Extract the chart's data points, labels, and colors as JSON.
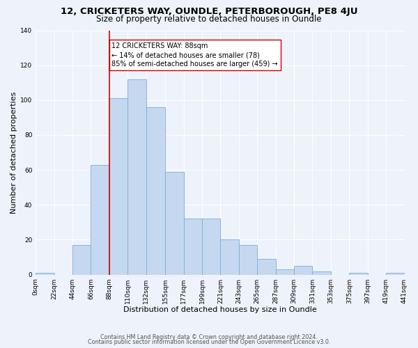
{
  "title": "12, CRICKETERS WAY, OUNDLE, PETERBOROUGH, PE8 4JU",
  "subtitle": "Size of property relative to detached houses in Oundle",
  "xlabel": "Distribution of detached houses by size in Oundle",
  "ylabel": "Number of detached properties",
  "bar_edges": [
    0,
    22,
    44,
    66,
    88,
    110,
    132,
    155,
    177,
    199,
    221,
    243,
    265,
    287,
    309,
    331,
    353,
    375,
    397,
    419,
    441
  ],
  "bar_heights": [
    1,
    0,
    17,
    63,
    101,
    112,
    96,
    59,
    32,
    32,
    20,
    17,
    9,
    3,
    5,
    2,
    0,
    1,
    0,
    1
  ],
  "bar_color": "#c5d8f0",
  "bar_edgecolor": "#7aafd4",
  "vline_x": 88,
  "vline_color": "#cc0000",
  "annotation_text": "12 CRICKETERS WAY: 88sqm\n← 14% of detached houses are smaller (78)\n85% of semi-detached houses are larger (459) →",
  "annotation_box_edgecolor": "#cc0000",
  "annotation_box_facecolor": "#ffffff",
  "ylim": [
    0,
    140
  ],
  "yticks": [
    0,
    20,
    40,
    60,
    80,
    100,
    120,
    140
  ],
  "tick_labels": [
    "0sqm",
    "22sqm",
    "44sqm",
    "66sqm",
    "88sqm",
    "110sqm",
    "132sqm",
    "155sqm",
    "177sqm",
    "199sqm",
    "221sqm",
    "243sqm",
    "265sqm",
    "287sqm",
    "309sqm",
    "331sqm",
    "353sqm",
    "375sqm",
    "397sqm",
    "419sqm",
    "441sqm"
  ],
  "footer1": "Contains HM Land Registry data © Crown copyright and database right 2024.",
  "footer2": "Contains public sector information licensed under the Open Government Licence v3.0.",
  "background_color": "#eef2fa",
  "grid_color": "#ffffff",
  "title_fontsize": 9.5,
  "subtitle_fontsize": 8.5,
  "xlabel_fontsize": 8,
  "ylabel_fontsize": 8,
  "tick_fontsize": 6.5,
  "annot_fontsize": 7,
  "footer_fontsize": 5.8
}
